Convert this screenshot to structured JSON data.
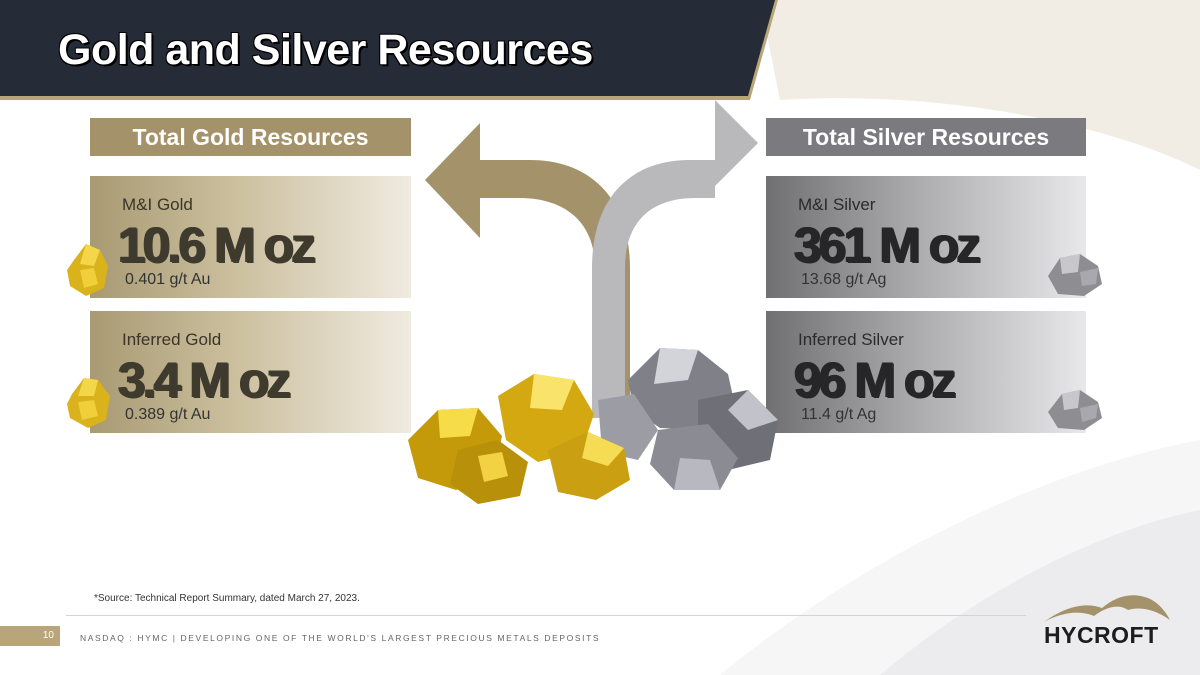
{
  "slide": {
    "title": "Gold and Silver Resources",
    "page_number": "10",
    "footer": "NASDAQ : HYMC | DEVELOPING ONE OF THE WORLD'S LARGEST PRECIOUS METALS DEPOSITS",
    "source_note": "*Source: Technical Report Summary, dated March 27, 2023."
  },
  "gold": {
    "heading": "Total Gold Resources",
    "cards": [
      {
        "label": "M&I Gold",
        "value": "10.6 M oz",
        "grade": "0.401 g/t Au"
      },
      {
        "label": "Inferred Gold",
        "value": "3.4 M oz",
        "grade": "0.389 g/t Au"
      }
    ]
  },
  "silver": {
    "heading": "Total Silver Resources",
    "cards": [
      {
        "label": "M&I Silver",
        "value": "361 M oz",
        "grade": "13.68 g/t Ag"
      },
      {
        "label": "Inferred Silver",
        "value": "96 M oz",
        "grade": "11.4 g/t Ag"
      }
    ]
  },
  "logo": {
    "text": "HYCROFT"
  },
  "colors": {
    "navy": "#262b38",
    "gold": "#a3926a",
    "silver": "#7b7a7f"
  }
}
